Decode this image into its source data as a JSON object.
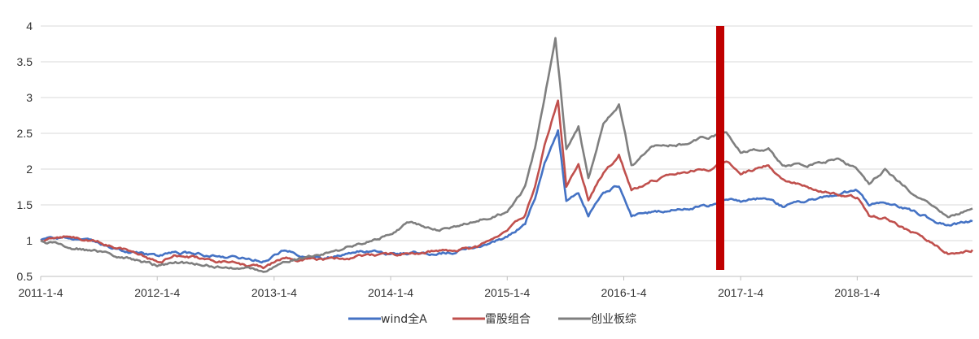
{
  "chart_data": {
    "type": "line",
    "title": "",
    "xlabel": "",
    "ylabel": "",
    "ylim": [
      0.5,
      4
    ],
    "xlim": [
      "2011-01-04",
      "2018-12-31"
    ],
    "y_ticks": [
      "0.5",
      "1",
      "1.5",
      "2",
      "2.5",
      "3",
      "3.5",
      "4"
    ],
    "x_ticks": [
      "2011-1-4",
      "2012-1-4",
      "2013-1-4",
      "2014-1-4",
      "2015-1-4",
      "2016-1-4",
      "2017-1-4",
      "2018-1-4"
    ],
    "grid": "horizontal",
    "legend_position": "bottom-center",
    "annotation": {
      "type": "vertical-band",
      "date": "2016-11-01",
      "color": "#c00000"
    },
    "series": [
      {
        "name": "wind全A",
        "color": "#4472c4",
        "points": [
          [
            "2011-01-04",
            1.0
          ],
          [
            "2011-04-01",
            1.03
          ],
          [
            "2011-07-01",
            0.95
          ],
          [
            "2011-10-01",
            0.85
          ],
          [
            "2012-01-04",
            0.78
          ],
          [
            "2012-03-01",
            0.84
          ],
          [
            "2012-07-01",
            0.8
          ],
          [
            "2012-12-01",
            0.72
          ],
          [
            "2013-02-01",
            0.85
          ],
          [
            "2013-06-01",
            0.75
          ],
          [
            "2013-10-01",
            0.86
          ],
          [
            "2014-01-04",
            0.83
          ],
          [
            "2014-06-01",
            0.82
          ],
          [
            "2014-10-01",
            0.9
          ],
          [
            "2015-01-04",
            1.05
          ],
          [
            "2015-03-01",
            1.25
          ],
          [
            "2015-04-01",
            1.6
          ],
          [
            "2015-05-01",
            2.1
          ],
          [
            "2015-06-12",
            2.55
          ],
          [
            "2015-07-08",
            1.55
          ],
          [
            "2015-08-15",
            1.65
          ],
          [
            "2015-09-15",
            1.35
          ],
          [
            "2015-11-01",
            1.7
          ],
          [
            "2015-12-20",
            1.78
          ],
          [
            "2016-01-28",
            1.35
          ],
          [
            "2016-04-01",
            1.4
          ],
          [
            "2016-07-01",
            1.45
          ],
          [
            "2016-10-01",
            1.5
          ],
          [
            "2016-11-20",
            1.6
          ],
          [
            "2017-01-04",
            1.55
          ],
          [
            "2017-04-01",
            1.6
          ],
          [
            "2017-05-15",
            1.48
          ],
          [
            "2017-08-01",
            1.55
          ],
          [
            "2017-11-01",
            1.65
          ],
          [
            "2018-01-04",
            1.7
          ],
          [
            "2018-02-10",
            1.5
          ],
          [
            "2018-04-01",
            1.55
          ],
          [
            "2018-07-01",
            1.4
          ],
          [
            "2018-10-20",
            1.2
          ],
          [
            "2018-12-31",
            1.27
          ]
        ]
      },
      {
        "name": "雷股组合",
        "color": "#c0504d",
        "points": [
          [
            "2011-01-04",
            1.0
          ],
          [
            "2011-04-01",
            1.07
          ],
          [
            "2011-07-01",
            0.98
          ],
          [
            "2011-10-01",
            0.88
          ],
          [
            "2012-01-04",
            0.7
          ],
          [
            "2012-03-01",
            0.8
          ],
          [
            "2012-07-01",
            0.72
          ],
          [
            "2012-12-01",
            0.62
          ],
          [
            "2013-02-01",
            0.75
          ],
          [
            "2013-06-01",
            0.72
          ],
          [
            "2013-10-01",
            0.78
          ],
          [
            "2014-01-04",
            0.8
          ],
          [
            "2014-06-01",
            0.85
          ],
          [
            "2014-10-01",
            0.9
          ],
          [
            "2015-01-04",
            1.15
          ],
          [
            "2015-03-01",
            1.35
          ],
          [
            "2015-04-01",
            1.75
          ],
          [
            "2015-05-01",
            2.35
          ],
          [
            "2015-06-12",
            2.95
          ],
          [
            "2015-07-08",
            1.75
          ],
          [
            "2015-08-15",
            2.1
          ],
          [
            "2015-09-15",
            1.6
          ],
          [
            "2015-11-01",
            1.95
          ],
          [
            "2015-12-20",
            2.2
          ],
          [
            "2016-01-28",
            1.7
          ],
          [
            "2016-04-01",
            1.85
          ],
          [
            "2016-07-01",
            1.95
          ],
          [
            "2016-10-01",
            2.0
          ],
          [
            "2016-11-20",
            2.1
          ],
          [
            "2017-01-04",
            1.95
          ],
          [
            "2017-04-01",
            2.05
          ],
          [
            "2017-05-15",
            1.85
          ],
          [
            "2017-08-01",
            1.75
          ],
          [
            "2017-11-01",
            1.65
          ],
          [
            "2018-01-04",
            1.6
          ],
          [
            "2018-02-10",
            1.35
          ],
          [
            "2018-04-01",
            1.3
          ],
          [
            "2018-07-01",
            1.1
          ],
          [
            "2018-10-20",
            0.82
          ],
          [
            "2018-12-31",
            0.87
          ]
        ]
      },
      {
        "name": "创业板综",
        "color": "#7f7f7f",
        "points": [
          [
            "2011-01-04",
            1.0
          ],
          [
            "2011-04-01",
            0.92
          ],
          [
            "2011-07-01",
            0.85
          ],
          [
            "2011-10-01",
            0.75
          ],
          [
            "2012-01-04",
            0.65
          ],
          [
            "2012-03-01",
            0.7
          ],
          [
            "2012-07-01",
            0.65
          ],
          [
            "2012-12-01",
            0.58
          ],
          [
            "2013-02-01",
            0.7
          ],
          [
            "2013-06-01",
            0.82
          ],
          [
            "2013-10-01",
            0.95
          ],
          [
            "2014-01-04",
            1.1
          ],
          [
            "2014-03-01",
            1.25
          ],
          [
            "2014-06-01",
            1.15
          ],
          [
            "2014-10-01",
            1.3
          ],
          [
            "2015-01-04",
            1.4
          ],
          [
            "2015-03-01",
            1.75
          ],
          [
            "2015-04-01",
            2.3
          ],
          [
            "2015-05-01",
            3.0
          ],
          [
            "2015-06-04",
            3.85
          ],
          [
            "2015-07-08",
            2.3
          ],
          [
            "2015-08-15",
            2.6
          ],
          [
            "2015-09-15",
            1.85
          ],
          [
            "2015-11-01",
            2.6
          ],
          [
            "2015-12-20",
            2.9
          ],
          [
            "2016-01-28",
            2.05
          ],
          [
            "2016-04-01",
            2.3
          ],
          [
            "2016-07-01",
            2.35
          ],
          [
            "2016-10-01",
            2.45
          ],
          [
            "2016-11-20",
            2.5
          ],
          [
            "2017-01-04",
            2.25
          ],
          [
            "2017-04-01",
            2.3
          ],
          [
            "2017-05-15",
            2.05
          ],
          [
            "2017-08-01",
            2.05
          ],
          [
            "2017-11-01",
            2.15
          ],
          [
            "2018-01-04",
            2.0
          ],
          [
            "2018-02-10",
            1.8
          ],
          [
            "2018-04-01",
            2.0
          ],
          [
            "2018-07-01",
            1.65
          ],
          [
            "2018-10-20",
            1.35
          ],
          [
            "2018-12-31",
            1.45
          ]
        ]
      }
    ]
  }
}
